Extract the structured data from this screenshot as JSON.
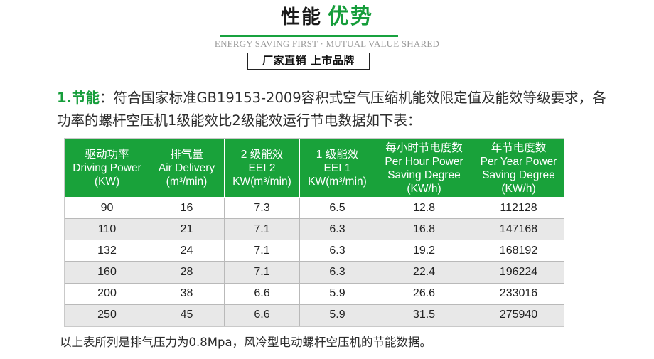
{
  "header": {
    "title_part1": "性能",
    "title_part2": "优势",
    "subtitle_en": "ENERGY SAVING FIRST · MUTUAL VALUE SHARED",
    "badge": "厂家直销 上市品牌"
  },
  "intro": {
    "lead": "1.节能",
    "colon": "：",
    "text": "符合国家标准GB19153-2009容积式空气压缩机能效限定值及能效等级要求，各功率的螺杆空压机1级能效比2级能效运行节电数据如下表："
  },
  "table": {
    "headers": [
      {
        "zh": "驱动功率",
        "en1": "Driving Power",
        "en2": "(KW)"
      },
      {
        "zh": "排气量",
        "en1": "Air Delivery",
        "en2": "(m³/min)"
      },
      {
        "zh": "2 级能效",
        "en1": "EEI 2",
        "en2": "KW(m³/min)"
      },
      {
        "zh": "1 级能效",
        "en1": "EEI 1",
        "en2": "KW(m³/min)"
      },
      {
        "zh": "每小时节电度数",
        "en1": "Per Hour Power",
        "en2": "Saving Degree",
        "en3": "(KW/h)"
      },
      {
        "zh": "年节电度数",
        "en1": "Per Year Power",
        "en2": "Saving Degree",
        "en3": "(KW/h)"
      }
    ],
    "rows": [
      [
        "90",
        "16",
        "7.3",
        "6.5",
        "12.8",
        "112128"
      ],
      [
        "110",
        "21",
        "7.1",
        "6.3",
        "16.8",
        "147168"
      ],
      [
        "132",
        "24",
        "7.1",
        "6.3",
        "19.2",
        "168192"
      ],
      [
        "160",
        "28",
        "7.1",
        "6.3",
        "22.4",
        "196224"
      ],
      [
        "200",
        "38",
        "6.6",
        "5.9",
        "26.6",
        "233016"
      ],
      [
        "250",
        "45",
        "6.6",
        "5.9",
        "31.5",
        "275940"
      ]
    ]
  },
  "footnote": "以上表所列是排气压力为0.8Mpa，风冷型电动螺杆空压机的节能数据。"
}
